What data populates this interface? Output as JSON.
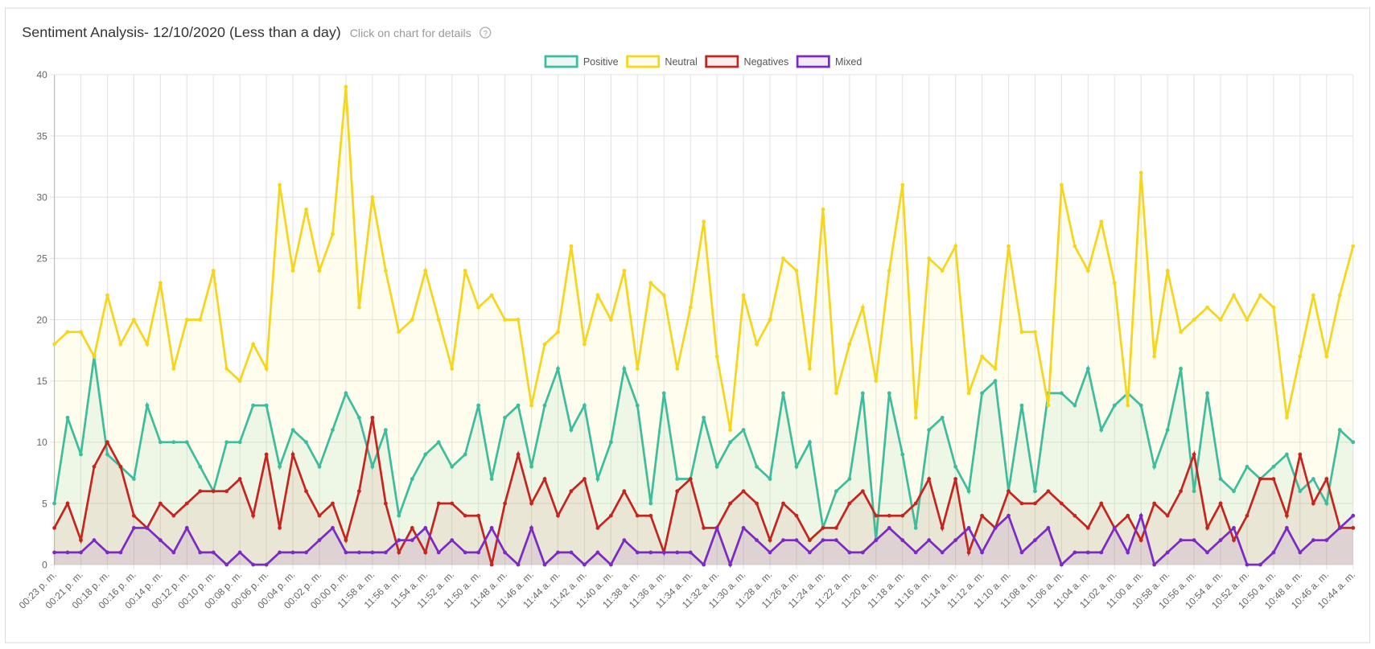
{
  "chart_data": {
    "type": "line",
    "title": "Sentiment Analysis- 12/10/2020 (Less than a day)",
    "subtitle": "Click on chart for details",
    "help_icon": "?",
    "categories": [
      "00:23 p. m.",
      null,
      "00:21 p. m.",
      null,
      "00:18 p. m.",
      null,
      "00:16 p. m.",
      null,
      "00:14 p. m.",
      null,
      "00:12 p. m.",
      null,
      "00:10 p. m.",
      null,
      "00:08 p. m.",
      null,
      "00:06 p. m.",
      null,
      "00:04 p. m.",
      null,
      "00:02 p. m.",
      null,
      "00:00 p. m.",
      null,
      "11:58 a. m.",
      null,
      "11:56 a. m.",
      null,
      "11:54 a. m.",
      null,
      "11:52 a. m.",
      null,
      "11:50 a. m.",
      null,
      "11:48 a. m.",
      null,
      "11:46 a. m.",
      null,
      "11:44 a. m.",
      null,
      "11:42 a. m.",
      null,
      "11:40 a. m.",
      null,
      "11:38 a. m.",
      null,
      "11:36 a. m.",
      null,
      "11:34 a. m.",
      null,
      "11:32 a. m.",
      null,
      "11:30 a. m.",
      null,
      "11:28 a. m.",
      null,
      "11:26 a. m.",
      null,
      "11:24 a. m.",
      null,
      "11:22 a. m.",
      null,
      "11:20 a. m.",
      null,
      "11:18 a. m.",
      null,
      "11:16 a. m.",
      null,
      "11:14 a. m.",
      null,
      "11:12 a. m.",
      null,
      "11:10 a. m.",
      null,
      "11:08 a. m.",
      null,
      "11:06 a. m.",
      null,
      "11:04 a. m.",
      null,
      "11:02 a. m.",
      null,
      "11:00 a. m.",
      null,
      "10:58 a. m.",
      null,
      "10:56 a. m.",
      null,
      "10:54 a. m.",
      null,
      "10:52 a. m.",
      null,
      "10:50 a. m.",
      null,
      "10:48 a. m.",
      null,
      "10:46 a. m.",
      null,
      "10:44 a. m."
    ],
    "series": [
      {
        "name": "Positive",
        "color": "#3dbd9d",
        "fill": "rgba(61,189,157,0.10)",
        "values": [
          5,
          12,
          9,
          17,
          9,
          8,
          7,
          13,
          10,
          10,
          10,
          8,
          6,
          10,
          10,
          13,
          13,
          8,
          11,
          10,
          8,
          11,
          14,
          12,
          8,
          11,
          4,
          7,
          9,
          10,
          8,
          9,
          13,
          7,
          12,
          13,
          8,
          13,
          16,
          11,
          13,
          7,
          10,
          16,
          13,
          5,
          14,
          7,
          7,
          12,
          8,
          10,
          11,
          8,
          7,
          14,
          8,
          10,
          3,
          6,
          7,
          14,
          2,
          14,
          9,
          3,
          11,
          12,
          8,
          6,
          14,
          15,
          6,
          13,
          6,
          14,
          14,
          13,
          16,
          11,
          13,
          14,
          13,
          8,
          11,
          16,
          6,
          14,
          7,
          6,
          8,
          7,
          8,
          9,
          6,
          7,
          5,
          11,
          10
        ]
      },
      {
        "name": "Neutral",
        "color": "#f7d51c",
        "fill": "rgba(255,240,150,0.16)",
        "values": [
          18,
          19,
          19,
          17,
          22,
          18,
          20,
          18,
          23,
          16,
          20,
          20,
          24,
          16,
          15,
          18,
          16,
          31,
          24,
          29,
          24,
          27,
          39,
          21,
          30,
          24,
          19,
          20,
          24,
          20,
          16,
          24,
          21,
          22,
          20,
          20,
          13,
          18,
          19,
          26,
          18,
          22,
          20,
          24,
          16,
          23,
          22,
          16,
          21,
          28,
          17,
          11,
          22,
          18,
          20,
          25,
          24,
          16,
          29,
          14,
          18,
          21,
          15,
          24,
          31,
          12,
          25,
          24,
          26,
          14,
          17,
          16,
          26,
          19,
          19,
          13,
          31,
          26,
          24,
          28,
          23,
          13,
          32,
          17,
          24,
          19,
          20,
          21,
          20,
          22,
          20,
          22,
          21,
          12,
          17,
          22,
          17,
          22,
          26
        ]
      },
      {
        "name": "Negatives",
        "color": "#c4261f",
        "fill": "rgba(196,38,31,0.08)",
        "values": [
          3,
          5,
          2,
          8,
          10,
          8,
          4,
          3,
          5,
          4,
          5,
          6,
          6,
          6,
          7,
          4,
          9,
          3,
          9,
          6,
          4,
          5,
          2,
          6,
          12,
          5,
          1,
          3,
          1,
          5,
          5,
          4,
          4,
          0,
          5,
          9,
          5,
          7,
          4,
          6,
          7,
          3,
          4,
          6,
          4,
          4,
          1,
          6,
          7,
          3,
          3,
          5,
          6,
          5,
          2,
          5,
          4,
          2,
          3,
          3,
          5,
          6,
          4,
          4,
          4,
          5,
          7,
          3,
          7,
          1,
          4,
          3,
          6,
          5,
          5,
          6,
          5,
          4,
          3,
          5,
          3,
          4,
          2,
          5,
          4,
          6,
          9,
          3,
          5,
          2,
          4,
          7,
          7,
          4,
          9,
          5,
          7,
          3,
          3
        ]
      },
      {
        "name": "Mixed",
        "color": "#7b2ac4",
        "fill": "rgba(123,42,196,0.10)",
        "values": [
          1,
          1,
          1,
          2,
          1,
          1,
          3,
          3,
          2,
          1,
          3,
          1,
          1,
          0,
          1,
          0,
          0,
          1,
          1,
          1,
          2,
          3,
          1,
          1,
          1,
          1,
          2,
          2,
          3,
          1,
          2,
          1,
          1,
          3,
          1,
          0,
          3,
          0,
          1,
          1,
          0,
          1,
          0,
          2,
          1,
          1,
          1,
          1,
          1,
          0,
          3,
          0,
          3,
          2,
          1,
          2,
          2,
          1,
          2,
          2,
          1,
          1,
          2,
          3,
          2,
          1,
          2,
          1,
          2,
          3,
          1,
          3,
          4,
          1,
          2,
          3,
          0,
          1,
          1,
          1,
          3,
          1,
          4,
          0,
          1,
          2,
          2,
          1,
          2,
          3,
          0,
          0,
          1,
          3,
          1,
          2,
          2,
          3,
          4
        ]
      }
    ],
    "ylim": [
      0,
      40
    ],
    "yticks": [
      0,
      5,
      10,
      15,
      20,
      25,
      30,
      35,
      40
    ],
    "grid": true,
    "legend": "top"
  }
}
